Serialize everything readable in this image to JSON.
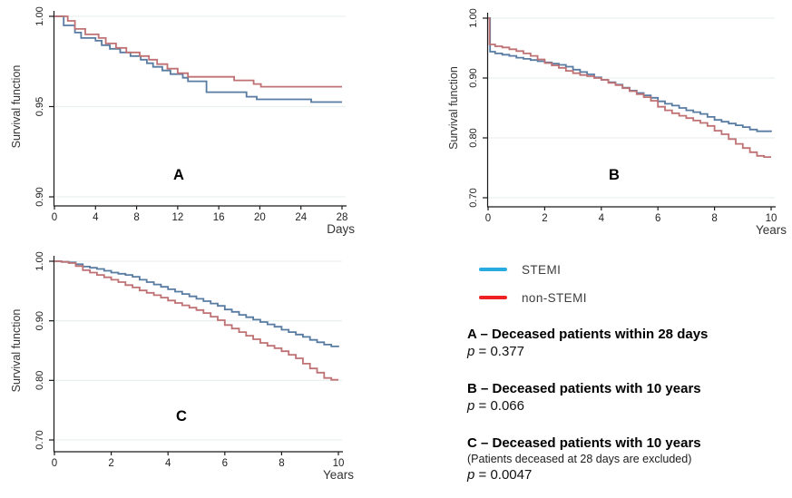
{
  "legend": {
    "items": [
      {
        "label": "STEMI",
        "color": "#29abe2"
      },
      {
        "label": "non-STEMI",
        "color": "#ee2224"
      }
    ]
  },
  "captions": [
    {
      "title": "A – Deceased patients within 28 days",
      "p_symbol": "p",
      "p_value": "= 0.377"
    },
    {
      "title": "B – Deceased patients with 10 years",
      "p_symbol": "p",
      "p_value": "= 0.066"
    },
    {
      "title": "C – Deceased patients with 10 years",
      "note": "(Patients deceased at 28 days are excluded)",
      "p_symbol": "p",
      "p_value": "= 0.0047"
    }
  ],
  "chart_data": [
    {
      "id": "A",
      "type": "line",
      "subtype": "kaplan-meier-step",
      "panel_label": "A",
      "title": "Deceased patients within 28 days",
      "ylabel": "Survival function",
      "xlabel": "Days",
      "xlim": [
        0,
        28
      ],
      "xticks": [
        0,
        4,
        8,
        12,
        16,
        20,
        24,
        28
      ],
      "ylim": [
        0.9,
        1.0
      ],
      "ytick_values": [
        1.0,
        0.95,
        0.9
      ],
      "ytick_labels": [
        "1.00",
        "0.95",
        "0.90"
      ],
      "grid": true,
      "legend_position": "none",
      "series": [
        {
          "name": "STEMI",
          "color": "#587ba2",
          "points": [
            [
              0,
              1.0
            ],
            [
              0.9,
              0.995
            ],
            [
              2,
              0.991
            ],
            [
              2.6,
              0.988
            ],
            [
              4,
              0.9865
            ],
            [
              4.6,
              0.984
            ],
            [
              5.4,
              0.982
            ],
            [
              6.4,
              0.98
            ],
            [
              7.4,
              0.978
            ],
            [
              8.4,
              0.976
            ],
            [
              9,
              0.974
            ],
            [
              9.6,
              0.972
            ],
            [
              10.5,
              0.97
            ],
            [
              11.3,
              0.968
            ],
            [
              12.5,
              0.966
            ],
            [
              13,
              0.964
            ],
            [
              14.8,
              0.958
            ],
            [
              18.7,
              0.9555
            ],
            [
              19.7,
              0.954
            ],
            [
              25,
              0.9525
            ],
            [
              28,
              0.9525
            ]
          ]
        },
        {
          "name": "non-STEMI",
          "color": "#bf7173",
          "points": [
            [
              0,
              1.0
            ],
            [
              1.3,
              0.9975
            ],
            [
              2,
              0.993
            ],
            [
              3,
              0.99
            ],
            [
              4.3,
              0.988
            ],
            [
              5,
              0.985
            ],
            [
              6,
              0.9825
            ],
            [
              7,
              0.98
            ],
            [
              8.3,
              0.978
            ],
            [
              9.2,
              0.976
            ],
            [
              10,
              0.9735
            ],
            [
              11,
              0.971
            ],
            [
              12,
              0.9685
            ],
            [
              13,
              0.9665
            ],
            [
              17.5,
              0.9645
            ],
            [
              19.4,
              0.9625
            ],
            [
              20.1,
              0.961
            ],
            [
              28,
              0.961
            ]
          ]
        }
      ]
    },
    {
      "id": "B",
      "type": "line",
      "subtype": "kaplan-meier-step",
      "panel_label": "B",
      "title": "Deceased patients with 10 years",
      "ylabel": "Survival function",
      "xlabel": "Years",
      "xlim": [
        0,
        10
      ],
      "xticks": [
        0,
        2,
        4,
        6,
        8,
        10
      ],
      "ylim": [
        0.7,
        1.0
      ],
      "ytick_values": [
        1.0,
        0.9,
        0.8,
        0.7
      ],
      "ytick_labels": [
        "1.00",
        "0.90",
        "0.80",
        "0.70"
      ],
      "grid": true,
      "legend_position": "none",
      "series": [
        {
          "name": "STEMI",
          "color": "#587ba2",
          "points": [
            [
              0,
              1.0
            ],
            [
              0.07,
              0.944
            ],
            [
              0.25,
              0.941
            ],
            [
              0.5,
              0.939
            ],
            [
              0.75,
              0.937
            ],
            [
              1,
              0.934
            ],
            [
              1.25,
              0.932
            ],
            [
              1.5,
              0.93
            ],
            [
              1.75,
              0.928
            ],
            [
              2,
              0.926
            ],
            [
              2.25,
              0.924
            ],
            [
              2.5,
              0.922
            ],
            [
              2.75,
              0.919
            ],
            [
              3,
              0.914
            ],
            [
              3.25,
              0.91
            ],
            [
              3.5,
              0.906
            ],
            [
              3.75,
              0.901
            ],
            [
              4,
              0.897
            ],
            [
              4.25,
              0.893
            ],
            [
              4.5,
              0.889
            ],
            [
              4.75,
              0.884
            ],
            [
              5,
              0.879
            ],
            [
              5.25,
              0.875
            ],
            [
              5.5,
              0.871
            ],
            [
              5.75,
              0.867
            ],
            [
              6,
              0.861
            ],
            [
              6.25,
              0.857
            ],
            [
              6.5,
              0.854
            ],
            [
              6.75,
              0.85
            ],
            [
              7,
              0.846
            ],
            [
              7.25,
              0.843
            ],
            [
              7.5,
              0.84
            ],
            [
              7.75,
              0.835
            ],
            [
              8,
              0.83
            ],
            [
              8.25,
              0.827
            ],
            [
              8.5,
              0.824
            ],
            [
              8.75,
              0.821
            ],
            [
              9,
              0.818
            ],
            [
              9.25,
              0.814
            ],
            [
              9.5,
              0.811
            ],
            [
              10,
              0.81
            ]
          ]
        },
        {
          "name": "non-STEMI",
          "color": "#bf7173",
          "points": [
            [
              0,
              1.0
            ],
            [
              0.05,
              0.956
            ],
            [
              0.25,
              0.953
            ],
            [
              0.5,
              0.951
            ],
            [
              0.75,
              0.948
            ],
            [
              1,
              0.945
            ],
            [
              1.25,
              0.941
            ],
            [
              1.5,
              0.937
            ],
            [
              1.75,
              0.931
            ],
            [
              2,
              0.925
            ],
            [
              2.25,
              0.921
            ],
            [
              2.5,
              0.917
            ],
            [
              2.75,
              0.912
            ],
            [
              3,
              0.908
            ],
            [
              3.25,
              0.905
            ],
            [
              3.5,
              0.903
            ],
            [
              3.75,
              0.9
            ],
            [
              4,
              0.897
            ],
            [
              4.25,
              0.892
            ],
            [
              4.5,
              0.888
            ],
            [
              4.75,
              0.883
            ],
            [
              5,
              0.878
            ],
            [
              5.25,
              0.873
            ],
            [
              5.5,
              0.868
            ],
            [
              5.75,
              0.862
            ],
            [
              6,
              0.852
            ],
            [
              6.25,
              0.846
            ],
            [
              6.5,
              0.841
            ],
            [
              6.75,
              0.837
            ],
            [
              7,
              0.833
            ],
            [
              7.25,
              0.829
            ],
            [
              7.5,
              0.825
            ],
            [
              7.75,
              0.82
            ],
            [
              8,
              0.812
            ],
            [
              8.25,
              0.806
            ],
            [
              8.5,
              0.798
            ],
            [
              8.75,
              0.79
            ],
            [
              9,
              0.783
            ],
            [
              9.25,
              0.776
            ],
            [
              9.5,
              0.77
            ],
            [
              9.75,
              0.768
            ],
            [
              10,
              0.768
            ]
          ]
        }
      ]
    },
    {
      "id": "C",
      "type": "line",
      "subtype": "kaplan-meier-step",
      "panel_label": "C",
      "title": "Deceased patients with 10 years (patients deceased at 28 days excluded)",
      "ylabel": "Survival function",
      "xlabel": "Years",
      "xlim": [
        0,
        10
      ],
      "xticks": [
        0,
        2,
        4,
        6,
        8,
        10
      ],
      "ylim": [
        0.7,
        1.0
      ],
      "ytick_values": [
        1.0,
        0.9,
        0.8,
        0.7
      ],
      "ytick_labels": [
        "1.00",
        "0.90",
        "0.80",
        "0.70"
      ],
      "grid": true,
      "legend_position": "none",
      "series": [
        {
          "name": "STEMI",
          "color": "#587ba2",
          "points": [
            [
              0,
              1.0
            ],
            [
              0.25,
              0.999
            ],
            [
              0.5,
              0.998
            ],
            [
              0.75,
              0.995
            ],
            [
              1,
              0.991
            ],
            [
              1.25,
              0.989
            ],
            [
              1.5,
              0.987
            ],
            [
              1.75,
              0.984
            ],
            [
              2,
              0.981
            ],
            [
              2.25,
              0.979
            ],
            [
              2.5,
              0.977
            ],
            [
              2.75,
              0.974
            ],
            [
              3,
              0.969
            ],
            [
              3.25,
              0.965
            ],
            [
              3.5,
              0.961
            ],
            [
              3.75,
              0.957
            ],
            [
              4,
              0.953
            ],
            [
              4.25,
              0.949
            ],
            [
              4.5,
              0.945
            ],
            [
              4.75,
              0.941
            ],
            [
              5,
              0.937
            ],
            [
              5.25,
              0.933
            ],
            [
              5.5,
              0.929
            ],
            [
              5.75,
              0.925
            ],
            [
              6,
              0.919
            ],
            [
              6.25,
              0.915
            ],
            [
              6.5,
              0.91
            ],
            [
              6.75,
              0.906
            ],
            [
              7,
              0.902
            ],
            [
              7.25,
              0.898
            ],
            [
              7.5,
              0.894
            ],
            [
              7.75,
              0.89
            ],
            [
              8,
              0.885
            ],
            [
              8.25,
              0.881
            ],
            [
              8.5,
              0.877
            ],
            [
              8.75,
              0.873
            ],
            [
              9,
              0.868
            ],
            [
              9.25,
              0.864
            ],
            [
              9.5,
              0.86
            ],
            [
              9.75,
              0.857
            ],
            [
              10,
              0.856
            ]
          ]
        },
        {
          "name": "non-STEMI",
          "color": "#bf7173",
          "points": [
            [
              0,
              1.0
            ],
            [
              0.25,
              0.999
            ],
            [
              0.5,
              0.997
            ],
            [
              0.75,
              0.992
            ],
            [
              1,
              0.985
            ],
            [
              1.25,
              0.981
            ],
            [
              1.5,
              0.977
            ],
            [
              1.75,
              0.973
            ],
            [
              2,
              0.969
            ],
            [
              2.25,
              0.965
            ],
            [
              2.5,
              0.96
            ],
            [
              2.75,
              0.956
            ],
            [
              3,
              0.951
            ],
            [
              3.25,
              0.947
            ],
            [
              3.5,
              0.943
            ],
            [
              3.75,
              0.939
            ],
            [
              4,
              0.934
            ],
            [
              4.25,
              0.93
            ],
            [
              4.5,
              0.926
            ],
            [
              4.75,
              0.922
            ],
            [
              5,
              0.918
            ],
            [
              5.25,
              0.913
            ],
            [
              5.5,
              0.907
            ],
            [
              5.75,
              0.901
            ],
            [
              6,
              0.893
            ],
            [
              6.25,
              0.887
            ],
            [
              6.5,
              0.881
            ],
            [
              6.75,
              0.875
            ],
            [
              7,
              0.869
            ],
            [
              7.25,
              0.863
            ],
            [
              7.5,
              0.858
            ],
            [
              7.75,
              0.854
            ],
            [
              8,
              0.849
            ],
            [
              8.25,
              0.843
            ],
            [
              8.5,
              0.837
            ],
            [
              8.75,
              0.828
            ],
            [
              9,
              0.82
            ],
            [
              9.25,
              0.813
            ],
            [
              9.5,
              0.804
            ],
            [
              9.75,
              0.801
            ],
            [
              10,
              0.801
            ]
          ]
        }
      ]
    }
  ]
}
